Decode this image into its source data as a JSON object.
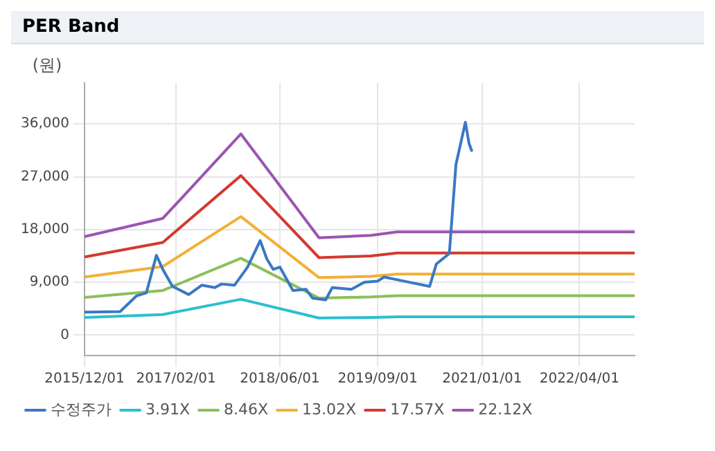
{
  "chart_data": {
    "type": "line",
    "title": "PER Band",
    "ylabel": "(원)",
    "xlim": [
      "2015-12-01",
      "2022-12-15"
    ],
    "xticks": [
      {
        "value": "2015-12-01",
        "label": "2015/12/01"
      },
      {
        "value": "2017-02-01",
        "label": "2017/02/01"
      },
      {
        "value": "2018-06-01",
        "label": "2018/06/01"
      },
      {
        "value": "2019-09-01",
        "label": "2019/09/01"
      },
      {
        "value": "2021-01-01",
        "label": "2021/01/01"
      },
      {
        "value": "2022-04-01",
        "label": "2022/04/01"
      }
    ],
    "ylim": [
      -3500,
      43000
    ],
    "yticks": [
      0,
      {
        "value": 9000,
        "label": "9,000"
      },
      {
        "value": 18000,
        "label": "18,000"
      },
      {
        "value": 27000,
        "label": "27,000"
      },
      {
        "value": 36000,
        "label": "36,000"
      }
    ],
    "grid": true,
    "legend": "bottom",
    "marker": "none",
    "line_style": "solid",
    "series": [
      {
        "name": "수정주가",
        "color": "#3a78c4",
        "x": [
          "2015-12-01",
          "2016-05-15",
          "2016-08-01",
          "2016-09-15",
          "2016-11-01",
          "2016-12-01",
          "2017-01-15",
          "2017-04-01",
          "2017-06-01",
          "2017-08-01",
          "2017-09-01",
          "2017-11-01",
          "2018-01-01",
          "2018-03-01",
          "2018-04-01",
          "2018-05-01",
          "2018-06-01",
          "2018-08-01",
          "2018-10-01",
          "2018-11-01",
          "2019-01-01",
          "2019-02-01",
          "2019-05-01",
          "2019-07-01",
          "2019-09-01",
          "2019-10-01",
          "2020-01-01",
          "2020-05-01",
          "2020-06-01",
          "2020-08-01",
          "2020-09-01",
          "2020-10-15",
          "2020-11-01",
          "2020-11-15"
        ],
        "values": [
          3900,
          4000,
          6700,
          7200,
          13600,
          11200,
          8300,
          6900,
          8500,
          8100,
          8700,
          8500,
          11600,
          16100,
          13000,
          11200,
          11600,
          7600,
          7800,
          6300,
          6000,
          8100,
          7800,
          9000,
          9200,
          9900,
          9200,
          8300,
          12100,
          13900,
          29100,
          36300,
          32700,
          31300
        ]
      },
      {
        "name": "3.91X",
        "color": "#2bbfd0",
        "x": [
          "2015-12-01",
          "2016-12-01",
          "2017-12-01",
          "2018-12-01",
          "2019-08-01",
          "2019-12-01",
          "2022-12-15"
        ],
        "values": [
          3000,
          3500,
          6100,
          2900,
          3000,
          3100,
          3100
        ]
      },
      {
        "name": "8.46X",
        "color": "#8cbf5a",
        "x": [
          "2015-12-01",
          "2016-12-01",
          "2017-12-01",
          "2018-12-01",
          "2019-08-01",
          "2019-12-01",
          "2022-12-15"
        ],
        "values": [
          6400,
          7600,
          13100,
          6300,
          6500,
          6700,
          6700
        ]
      },
      {
        "name": "13.02X",
        "color": "#f2b035",
        "x": [
          "2015-12-01",
          "2016-12-01",
          "2017-12-01",
          "2018-12-01",
          "2019-08-01",
          "2019-12-01",
          "2022-12-15"
        ],
        "values": [
          9900,
          11700,
          20200,
          9800,
          10000,
          10400,
          10400
        ]
      },
      {
        "name": "17.57X",
        "color": "#d23a2e",
        "x": [
          "2015-12-01",
          "2016-12-01",
          "2017-12-01",
          "2018-12-01",
          "2019-08-01",
          "2019-12-01",
          "2022-12-15"
        ],
        "values": [
          13300,
          15800,
          27200,
          13200,
          13500,
          14000,
          14000
        ]
      },
      {
        "name": "22.12X",
        "color": "#9a55b0",
        "x": [
          "2015-12-01",
          "2016-12-01",
          "2017-12-01",
          "2018-12-01",
          "2019-08-01",
          "2019-12-01",
          "2022-12-15"
        ],
        "values": [
          16800,
          19900,
          34300,
          16600,
          17000,
          17600,
          17600
        ]
      }
    ]
  }
}
